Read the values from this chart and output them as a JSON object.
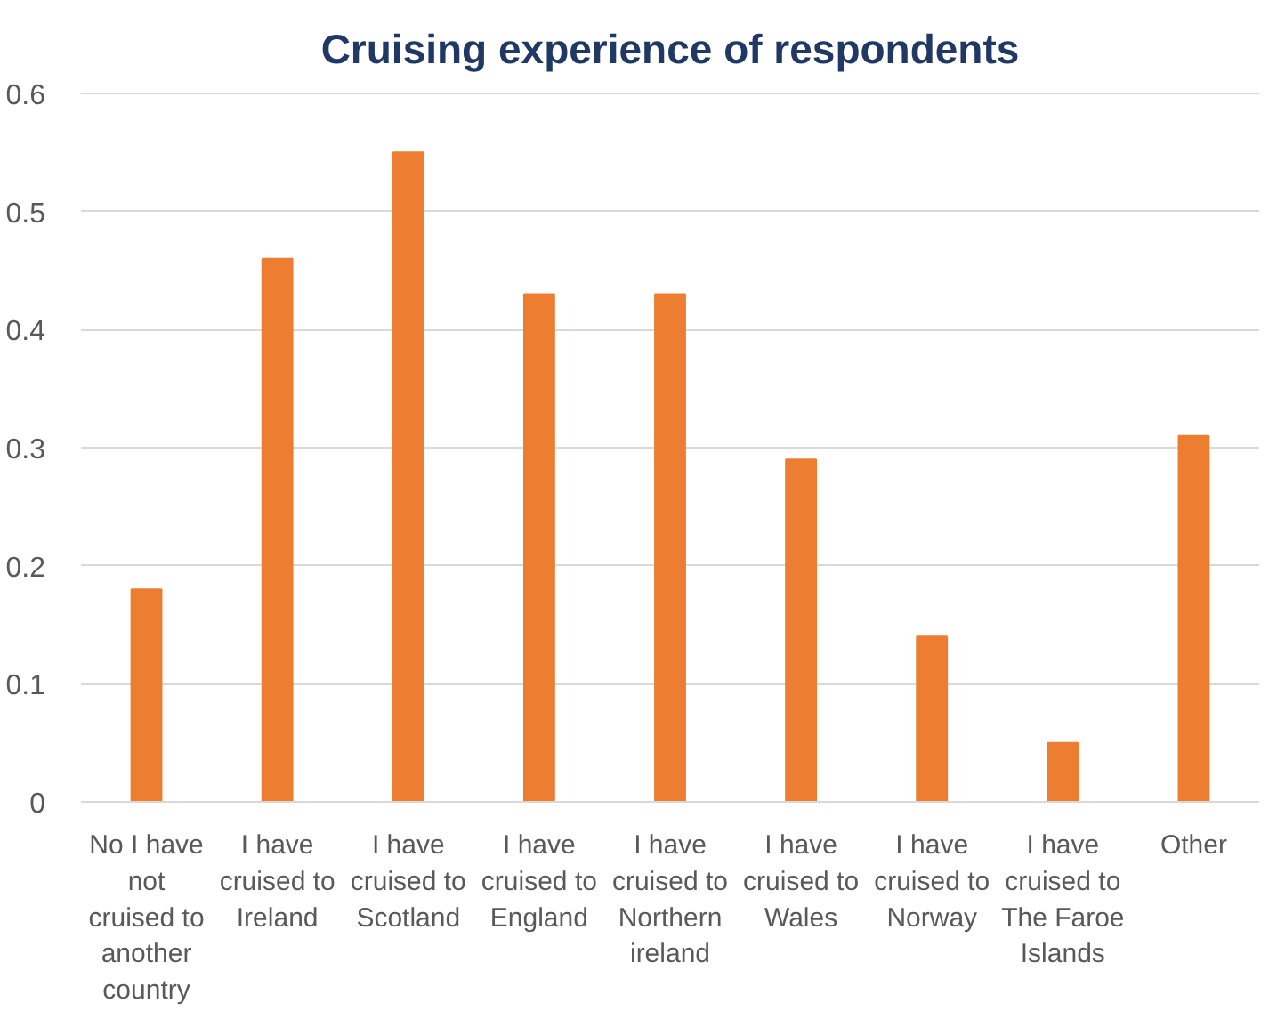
{
  "chart_data": {
    "type": "bar",
    "title": "Cruising experience of respondents",
    "categories": [
      "No I have not cruised to another country",
      "I have cruised to Ireland",
      "I have cruised to Scotland",
      "I have cruised to England",
      "I have cruised to Northern ireland",
      "I have cruised to Wales",
      "I have cruised to Norway",
      "I have cruised to The Faroe Islands",
      "Other"
    ],
    "values": [
      0.18,
      0.46,
      0.55,
      0.43,
      0.43,
      0.29,
      0.14,
      0.05,
      0.31
    ],
    "color": "#ed7d31",
    "ylim": [
      0,
      0.6
    ],
    "yticks": [
      0,
      0.1,
      0.2,
      0.3,
      0.4,
      0.5,
      0.6
    ],
    "grid": "y"
  }
}
